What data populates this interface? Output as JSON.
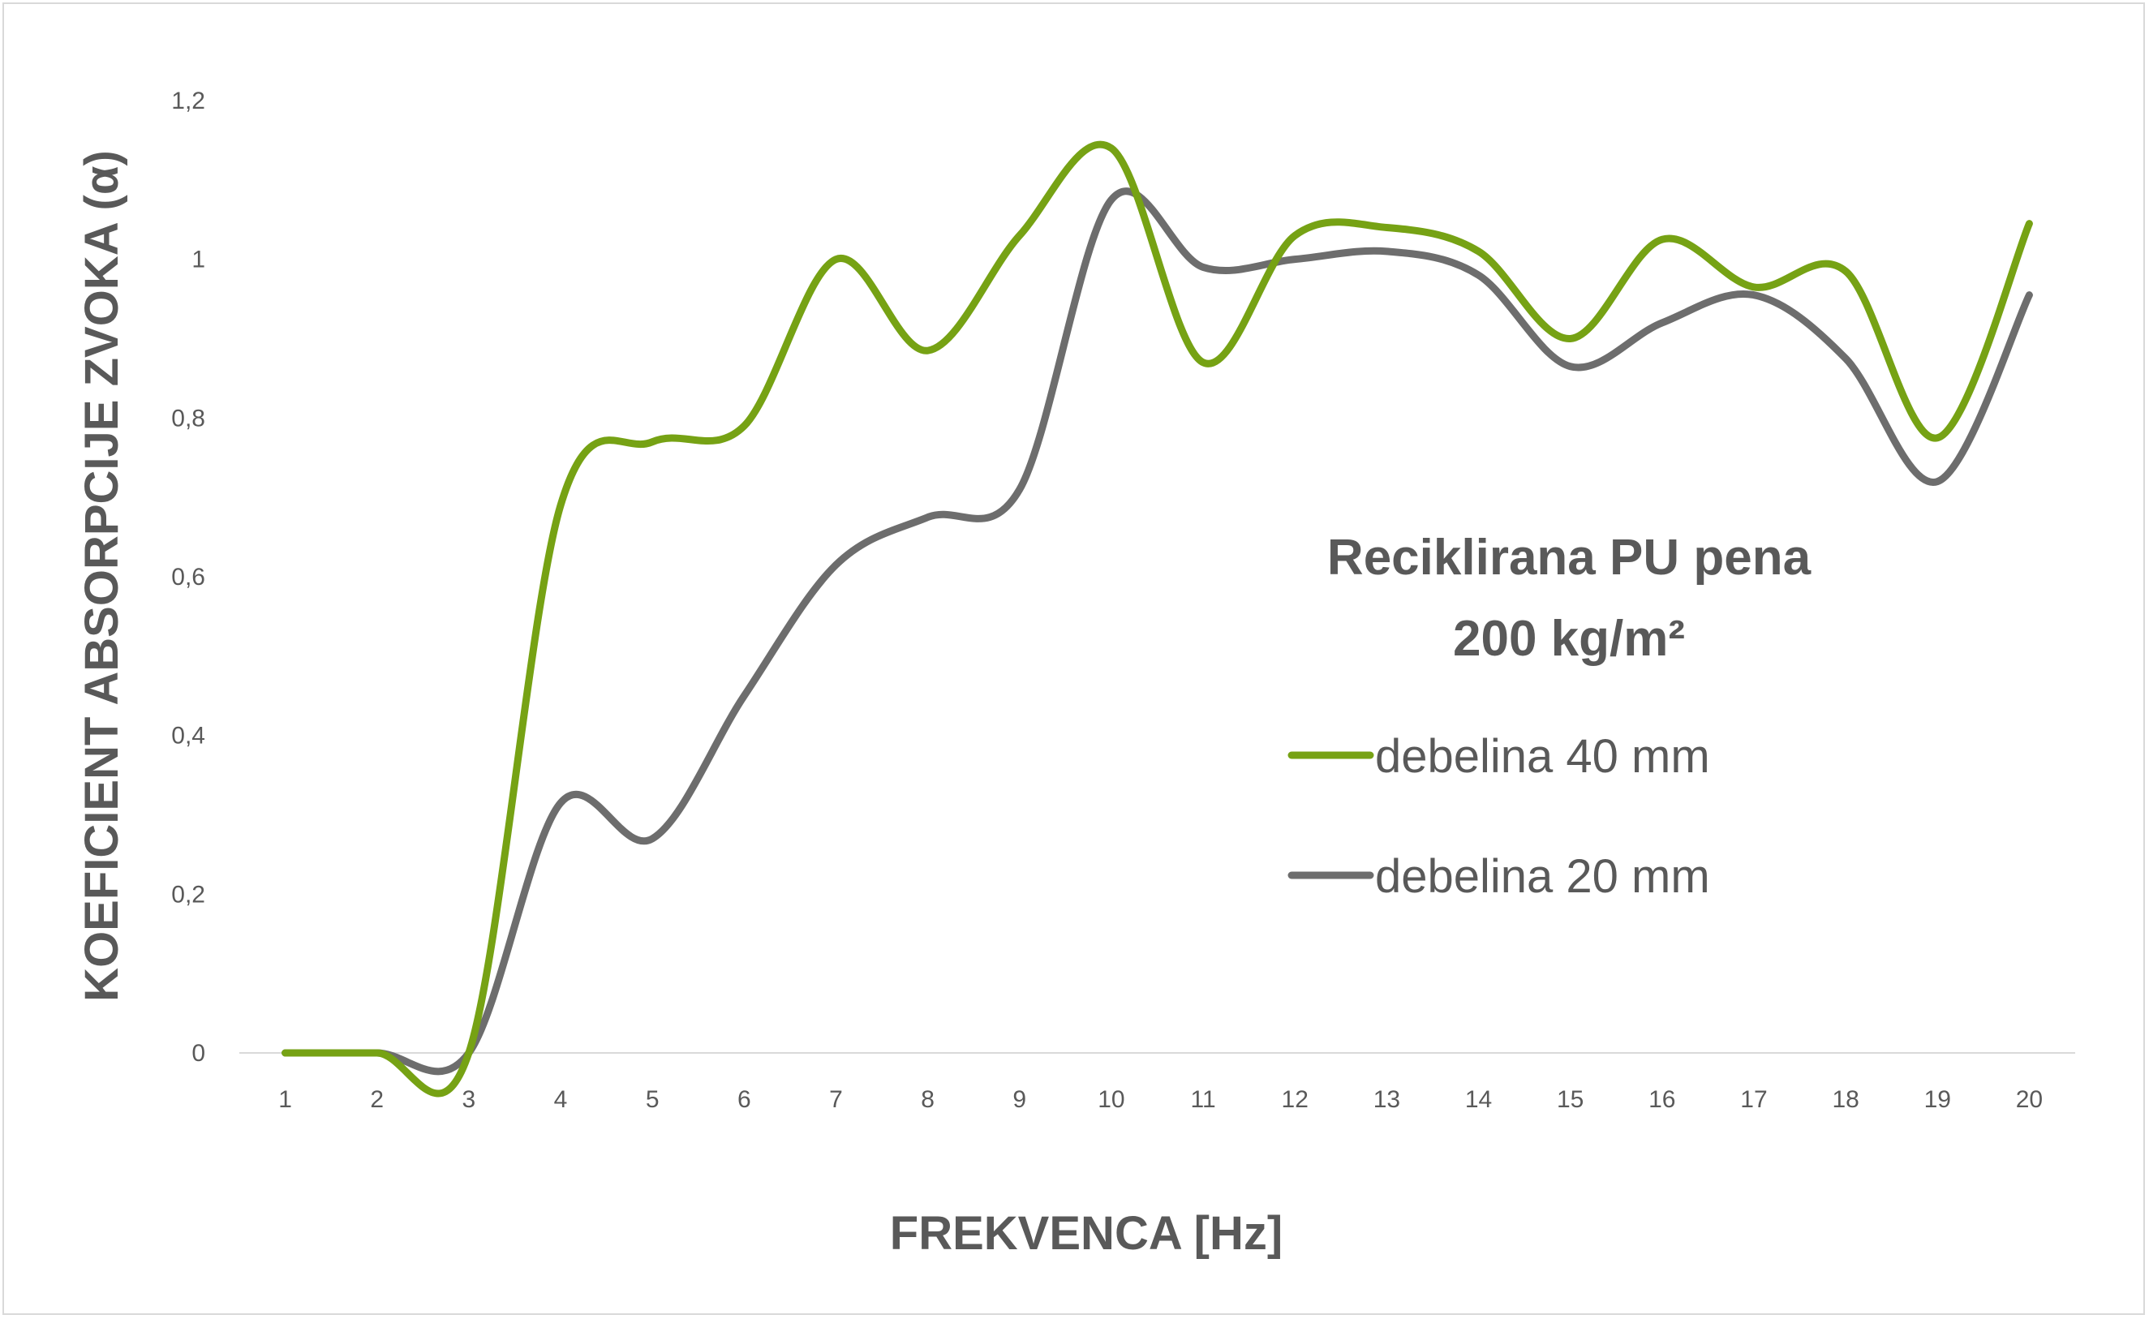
{
  "chart_data": {
    "type": "line",
    "title_line1": "Reciklirana PU pena",
    "title_line2": "200 kg/m²",
    "xlabel": "FREKVENCA [Hz]",
    "ylabel": "KOEFICIENT ABSORPCIJE ZVOKA (α)",
    "categories": [
      "1",
      "2",
      "3",
      "4",
      "5",
      "6",
      "7",
      "8",
      "9",
      "10",
      "11",
      "12",
      "13",
      "14",
      "15",
      "16",
      "17",
      "18",
      "19",
      "20"
    ],
    "y_ticks": [
      {
        "value": 0,
        "label": "0"
      },
      {
        "value": 0.2,
        "label": "0,2"
      },
      {
        "value": 0.4,
        "label": "0,4"
      },
      {
        "value": 0.6,
        "label": "0,6"
      },
      {
        "value": 0.8,
        "label": "0,8"
      },
      {
        "value": 1,
        "label": "1"
      },
      {
        "value": 1.2,
        "label": "1,2"
      }
    ],
    "ylim": [
      0,
      1.2
    ],
    "grid": false,
    "smooth": true,
    "legend_position": "right-center",
    "series": [
      {
        "name": "debelina 40 mm",
        "color": "#76a214",
        "values": [
          0,
          0,
          0,
          0.69,
          0.77,
          0.79,
          1.0,
          0.885,
          1.03,
          1.14,
          0.87,
          1.03,
          1.04,
          1.01,
          0.9,
          1.025,
          0.965,
          0.985,
          0.775,
          1.045
        ]
      },
      {
        "name": "debelina 20 mm",
        "color": "#6d6d6d",
        "values": [
          0,
          0,
          0,
          0.315,
          0.27,
          0.45,
          0.615,
          0.675,
          0.71,
          1.075,
          0.99,
          1.0,
          1.01,
          0.98,
          0.865,
          0.92,
          0.955,
          0.875,
          0.72,
          0.955
        ]
      }
    ]
  }
}
